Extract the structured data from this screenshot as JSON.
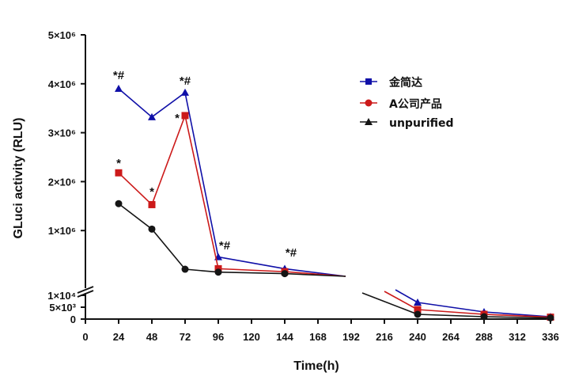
{
  "chart_data": {
    "type": "line",
    "xlabel": "Time(h)",
    "ylabel": "GLuci activity (RLU)",
    "x_ticks": [
      "0",
      "24",
      "48",
      "72",
      "96",
      "120",
      "144",
      "168",
      "192",
      "216",
      "240",
      "264",
      "288",
      "312",
      "336"
    ],
    "y_ticks_upper": [
      "1×10⁶",
      "2×10⁶",
      "3×10⁶",
      "4×10⁶",
      "5×10⁶"
    ],
    "y_ticks_lower": [
      "0",
      "5×10³",
      "1×10⁴"
    ],
    "xlim": [
      0,
      336
    ],
    "ylim": [
      0,
      5000000
    ],
    "series": [
      {
        "name": "金简达",
        "color": "#1010a8",
        "marker": "square",
        "points": [
          {
            "x": 24,
            "y": 3900000
          },
          {
            "x": 48,
            "y": 3320000
          },
          {
            "x": 72,
            "y": 3820000
          },
          {
            "x": 96,
            "y": 460000
          },
          {
            "x": 144,
            "y": 220000
          },
          {
            "x": 192,
            "y": -1
          },
          {
            "x": 240,
            "y": 7000
          },
          {
            "x": 288,
            "y": 3000
          },
          {
            "x": 336,
            "y": 1000
          }
        ]
      },
      {
        "name": "A公司产品",
        "color": "#cc1a1a",
        "marker": "circle",
        "points": [
          {
            "x": 24,
            "y": 2180000
          },
          {
            "x": 48,
            "y": 1530000
          },
          {
            "x": 72,
            "y": 3350000
          },
          {
            "x": 96,
            "y": 220000
          },
          {
            "x": 144,
            "y": 160000
          },
          {
            "x": 192,
            "y": -1
          },
          {
            "x": 240,
            "y": 4000
          },
          {
            "x": 288,
            "y": 2000
          },
          {
            "x": 336,
            "y": 800
          }
        ]
      },
      {
        "name": "unpurified",
        "color": "#151515",
        "marker": "triangle",
        "points": [
          {
            "x": 24,
            "y": 1550000
          },
          {
            "x": 48,
            "y": 1030000
          },
          {
            "x": 72,
            "y": 210000
          },
          {
            "x": 96,
            "y": 150000
          },
          {
            "x": 144,
            "y": 120000
          },
          {
            "x": 192,
            "y": -1
          },
          {
            "x": 240,
            "y": 2000
          },
          {
            "x": 288,
            "y": 1000
          },
          {
            "x": 336,
            "y": 500
          }
        ]
      }
    ],
    "annotations": [
      {
        "text": "*#",
        "x": 24
      },
      {
        "text": "*#",
        "x": 72
      },
      {
        "text": "*#",
        "x": 96
      },
      {
        "text": "*#",
        "x": 144
      },
      {
        "text": "*",
        "x": 24
      },
      {
        "text": "*",
        "x": 48
      },
      {
        "text": "*",
        "x": 72
      }
    ],
    "legend_position": "top-right",
    "grid": false
  }
}
